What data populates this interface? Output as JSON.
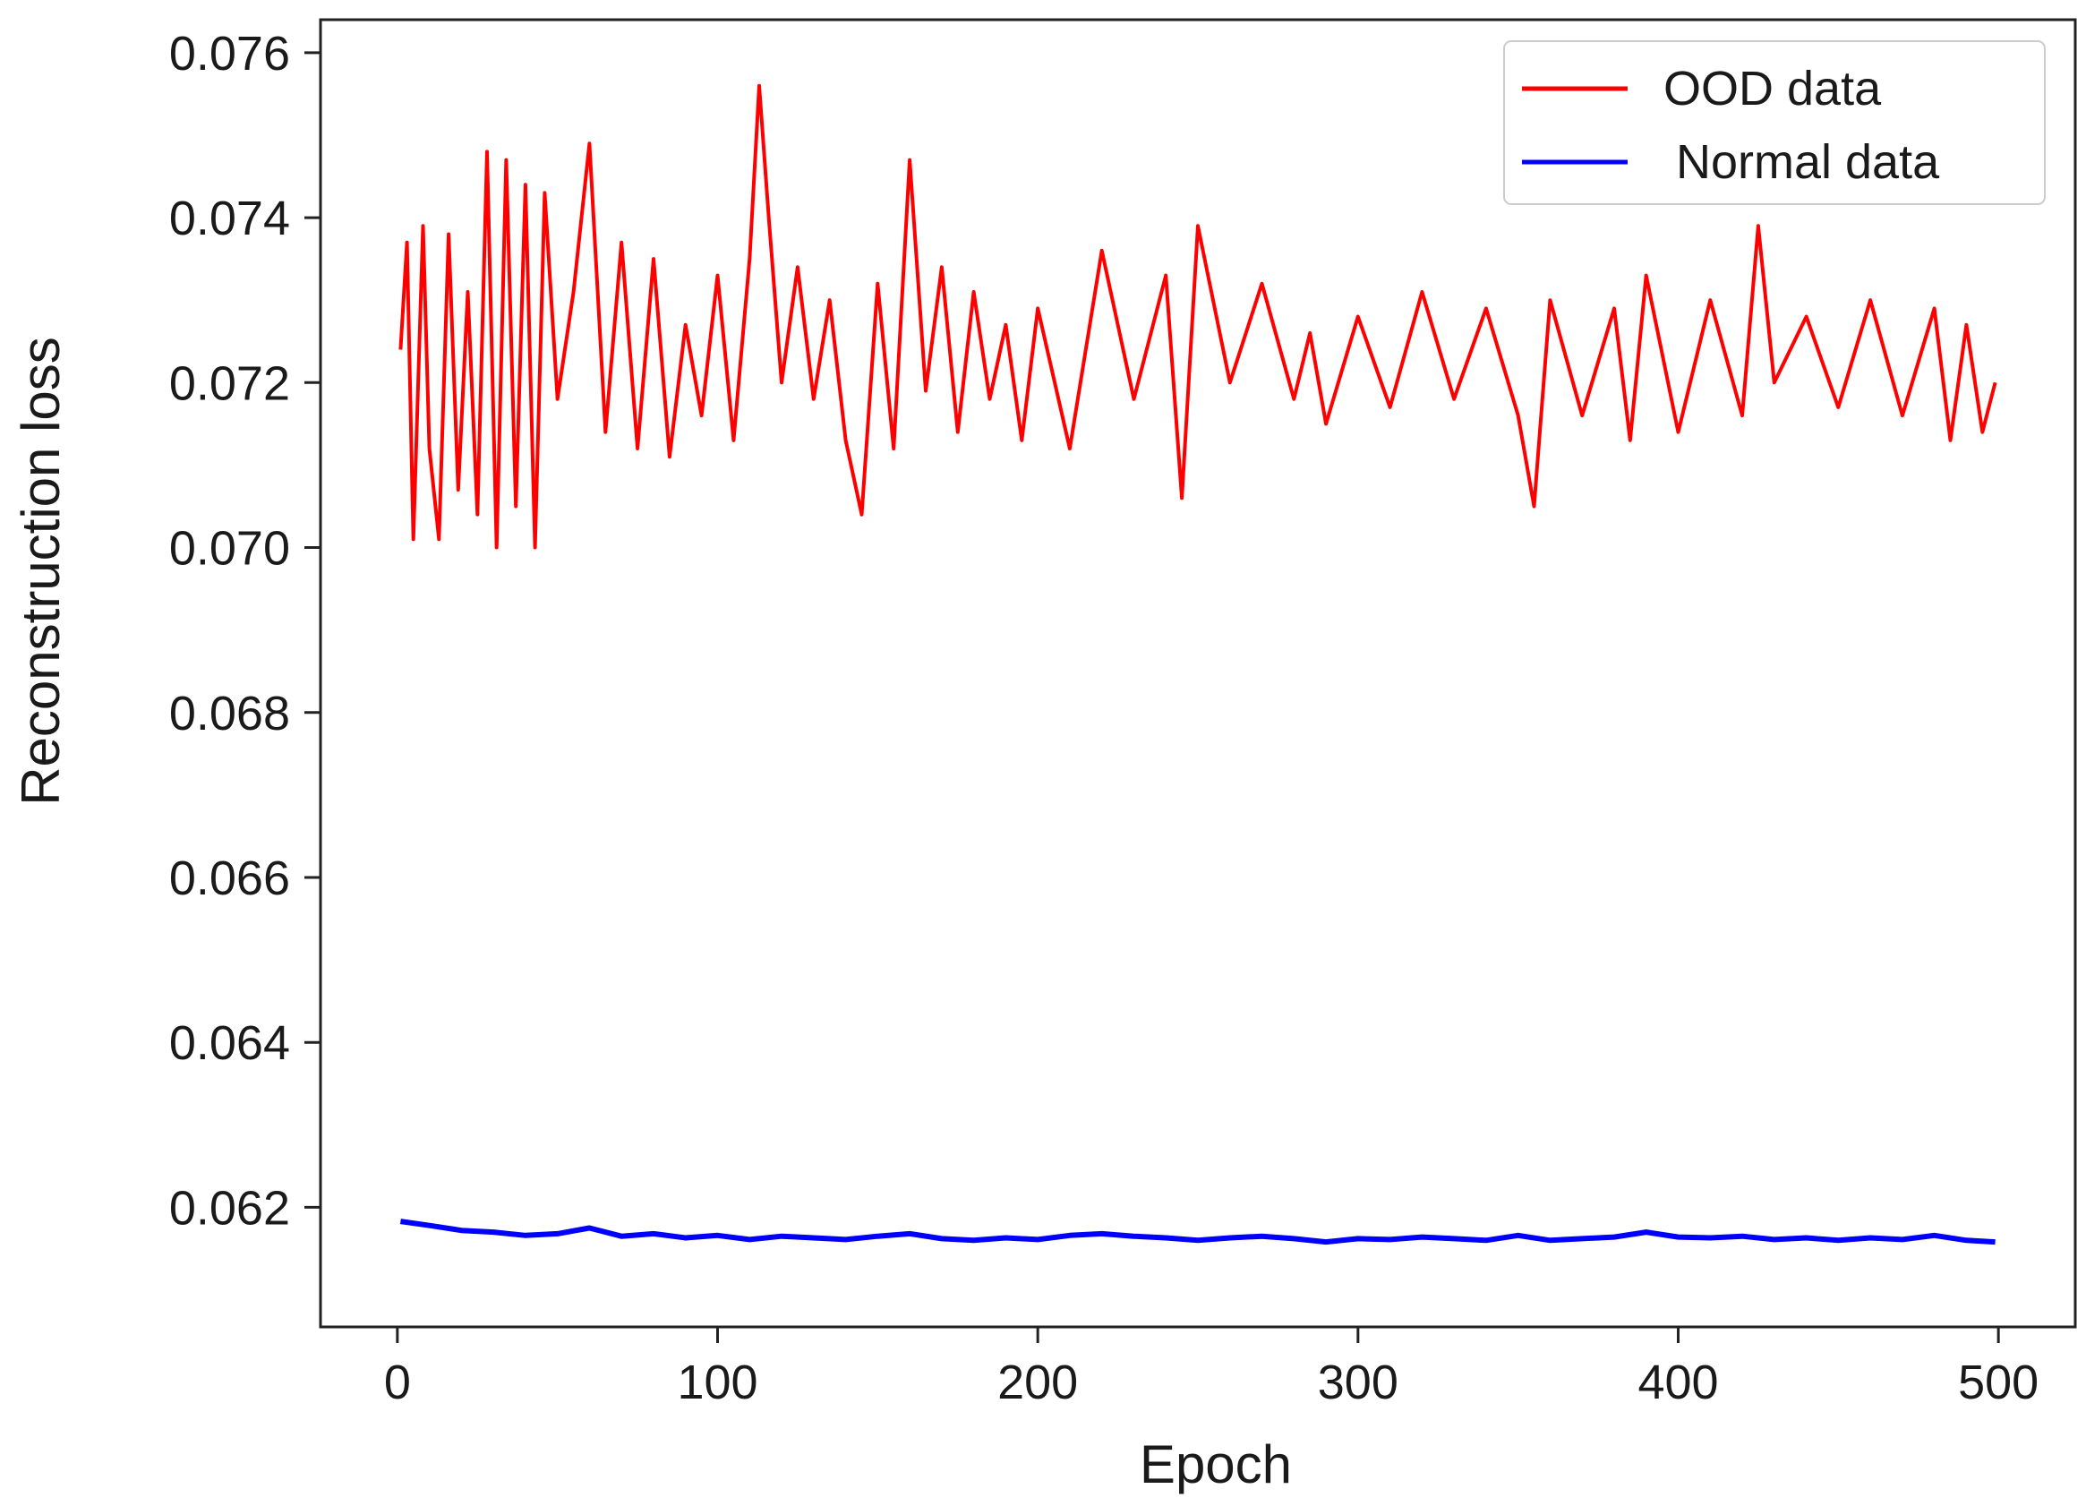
{
  "chart_data": {
    "type": "line",
    "title": "",
    "xlabel": "Epoch",
    "ylabel": "Reconstruction loss",
    "xlim": [
      -24,
      524
    ],
    "ylim": [
      0.06055,
      0.0764
    ],
    "xticks": [
      0,
      100,
      200,
      300,
      400,
      500
    ],
    "xtick_labels": [
      "0",
      "100",
      "200",
      "300",
      "400",
      "500"
    ],
    "yticks": [
      0.062,
      0.064,
      0.066,
      0.068,
      0.07,
      0.072,
      0.074,
      0.076
    ],
    "ytick_labels": [
      "0.062",
      "0.064",
      "0.066",
      "0.068",
      "0.070",
      "0.072",
      "0.074",
      "0.076"
    ],
    "grid": false,
    "legend_position": "top-right",
    "series": [
      {
        "name": "OOD data",
        "color": "#ff0000",
        "x": [
          1,
          3,
          5,
          8,
          10,
          13,
          16,
          19,
          22,
          25,
          28,
          31,
          34,
          37,
          40,
          43,
          46,
          50,
          55,
          60,
          65,
          70,
          75,
          80,
          85,
          90,
          95,
          100,
          105,
          110,
          113,
          116,
          120,
          125,
          130,
          135,
          140,
          145,
          150,
          155,
          160,
          165,
          170,
          175,
          180,
          185,
          190,
          195,
          200,
          210,
          220,
          230,
          240,
          245,
          250,
          260,
          270,
          280,
          285,
          290,
          300,
          310,
          320,
          330,
          340,
          350,
          355,
          360,
          370,
          380,
          385,
          390,
          400,
          410,
          420,
          425,
          430,
          440,
          450,
          460,
          470,
          480,
          485,
          490,
          495,
          499
        ],
        "y": [
          0.0724,
          0.0737,
          0.0701,
          0.0739,
          0.0712,
          0.0701,
          0.0738,
          0.0707,
          0.0731,
          0.0704,
          0.0748,
          0.07,
          0.0747,
          0.0705,
          0.0744,
          0.07,
          0.0743,
          0.0718,
          0.0731,
          0.0749,
          0.0714,
          0.0737,
          0.0712,
          0.0735,
          0.0711,
          0.0727,
          0.0716,
          0.0733,
          0.0713,
          0.0735,
          0.0756,
          0.074,
          0.072,
          0.0734,
          0.0718,
          0.073,
          0.0713,
          0.0704,
          0.0732,
          0.0712,
          0.0747,
          0.0719,
          0.0734,
          0.0714,
          0.0731,
          0.0718,
          0.0727,
          0.0713,
          0.0729,
          0.0712,
          0.0736,
          0.0718,
          0.0733,
          0.0706,
          0.0739,
          0.072,
          0.0732,
          0.0718,
          0.0726,
          0.0715,
          0.0728,
          0.0717,
          0.0731,
          0.0718,
          0.0729,
          0.0716,
          0.0705,
          0.073,
          0.0716,
          0.0729,
          0.0713,
          0.0733,
          0.0714,
          0.073,
          0.0716,
          0.0739,
          0.072,
          0.0728,
          0.0717,
          0.073,
          0.0716,
          0.0729,
          0.0713,
          0.0727,
          0.0714,
          0.072
        ]
      },
      {
        "name": "Normal data",
        "color": "#0000ff",
        "x": [
          1,
          10,
          20,
          30,
          40,
          50,
          60,
          70,
          80,
          90,
          100,
          110,
          120,
          130,
          140,
          150,
          160,
          170,
          180,
          190,
          200,
          210,
          220,
          230,
          240,
          250,
          260,
          270,
          280,
          290,
          300,
          310,
          320,
          330,
          340,
          350,
          360,
          370,
          380,
          390,
          400,
          410,
          420,
          430,
          440,
          450,
          460,
          470,
          480,
          490,
          499
        ],
        "y": [
          0.06183,
          0.06178,
          0.06172,
          0.0617,
          0.06166,
          0.06168,
          0.06175,
          0.06165,
          0.06168,
          0.06163,
          0.06166,
          0.06161,
          0.06165,
          0.06163,
          0.06161,
          0.06165,
          0.06168,
          0.06162,
          0.0616,
          0.06163,
          0.06161,
          0.06166,
          0.06168,
          0.06165,
          0.06163,
          0.0616,
          0.06163,
          0.06165,
          0.06162,
          0.06158,
          0.06162,
          0.06161,
          0.06164,
          0.06162,
          0.0616,
          0.06166,
          0.0616,
          0.06162,
          0.06164,
          0.0617,
          0.06164,
          0.06163,
          0.06165,
          0.06161,
          0.06163,
          0.0616,
          0.06163,
          0.06161,
          0.06166,
          0.0616,
          0.06158
        ]
      }
    ]
  }
}
